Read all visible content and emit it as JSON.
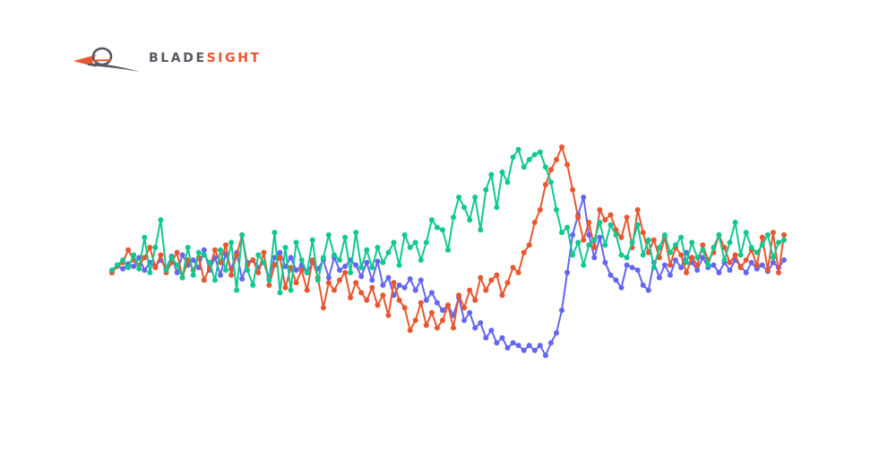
{
  "brand": {
    "part1": "BLADE",
    "part2": "SIGHT",
    "colors": {
      "dark": "#555a60",
      "accent": "#e8562f"
    }
  },
  "chart_data": {
    "type": "line",
    "title": "",
    "xlabel": "",
    "ylabel": "",
    "xlim": [
      0,
      124
    ],
    "ylim": [
      -0.9,
      1.1
    ],
    "grid": false,
    "legend": "none",
    "markers": true,
    "series": [
      {
        "color": "#6366f1",
        "values": [
          0.0,
          0.06,
          0.03,
          0.07,
          0.05,
          0.12,
          0.02,
          0.08,
          0.05,
          0.1,
          0.03,
          0.13,
          0.0,
          0.14,
          0.06,
          0.1,
          0.04,
          0.18,
          0.02,
          0.12,
          -0.02,
          0.15,
          0.03,
          0.16,
          -0.05,
          0.08,
          0.1,
          0.04,
          0.08,
          -0.04,
          0.12,
          0.16,
          0.05,
          0.12,
          0.02,
          0.06,
          0.0,
          0.08,
          0.03,
          0.1,
          -0.04,
          0.12,
          0.02,
          0.05,
          0.1,
          0.06,
          -0.03,
          0.08,
          -0.06,
          0.09,
          -0.1,
          -0.04,
          -0.18,
          -0.1,
          -0.12,
          -0.05,
          -0.14,
          -0.06,
          -0.22,
          -0.16,
          -0.24,
          -0.3,
          -0.26,
          -0.34,
          -0.2,
          -0.38,
          -0.32,
          -0.44,
          -0.4,
          -0.52,
          -0.46,
          -0.56,
          -0.52,
          -0.6,
          -0.56,
          -0.58,
          -0.62,
          -0.58,
          -0.62,
          -0.58,
          -0.66,
          -0.56,
          -0.48,
          -0.3,
          0.0,
          0.3,
          0.46,
          0.6,
          0.3,
          0.12,
          0.28,
          0.08,
          -0.02,
          -0.06,
          -0.12,
          0.06,
          0.04,
          0.02,
          -0.1,
          -0.14,
          0.08,
          -0.04,
          0.06,
          -0.02,
          0.1,
          0.04,
          0.16,
          0.08,
          0.02,
          0.12,
          0.04,
          0.06,
          0.0,
          0.08,
          0.02,
          0.1,
          0.05,
          0.0,
          0.08,
          0.03,
          0.06,
          0.01,
          0.08,
          0.04,
          0.1
        ]
      },
      {
        "color": "#e8562f",
        "values": [
          0.0,
          0.05,
          0.08,
          0.18,
          0.1,
          0.06,
          0.12,
          0.2,
          0.04,
          0.14,
          0.0,
          0.08,
          0.16,
          -0.04,
          0.1,
          0.02,
          0.12,
          -0.06,
          0.04,
          0.18,
          0.08,
          0.22,
          -0.02,
          0.14,
          0.3,
          0.06,
          0.1,
          0.0,
          0.16,
          -0.1,
          0.06,
          0.12,
          -0.12,
          0.04,
          -0.08,
          0.02,
          -0.14,
          0.1,
          -0.04,
          -0.28,
          -0.08,
          -0.14,
          -0.06,
          0.0,
          -0.2,
          -0.08,
          -0.16,
          -0.22,
          -0.12,
          -0.26,
          -0.18,
          -0.34,
          -0.08,
          -0.22,
          -0.28,
          -0.46,
          -0.38,
          -0.24,
          -0.42,
          -0.32,
          -0.44,
          -0.38,
          -0.26,
          -0.44,
          -0.18,
          -0.28,
          -0.14,
          -0.22,
          -0.04,
          -0.14,
          -0.06,
          -0.02,
          -0.18,
          -0.08,
          0.04,
          0.0,
          0.16,
          0.22,
          0.4,
          0.5,
          0.7,
          0.82,
          0.9,
          1.0,
          0.86,
          0.66,
          0.44,
          0.26,
          0.4,
          0.2,
          0.5,
          0.42,
          0.46,
          0.34,
          0.28,
          0.44,
          0.2,
          0.5,
          0.32,
          0.16,
          0.26,
          0.12,
          0.28,
          0.06,
          0.2,
          0.14,
          0.0,
          0.12,
          0.06,
          0.22,
          0.1,
          0.16,
          0.3,
          0.2,
          0.08,
          0.14,
          0.04,
          0.1,
          0.18,
          0.06,
          0.28,
          0.02,
          0.32,
          0.0,
          0.3
        ]
      },
      {
        "color": "#10c890",
        "values": [
          0.02,
          0.06,
          0.1,
          0.04,
          0.14,
          0.03,
          0.28,
          0.0,
          0.2,
          0.42,
          0.02,
          0.12,
          0.06,
          -0.04,
          0.2,
          -0.02,
          0.16,
          0.14,
          0.08,
          -0.06,
          0.18,
          0.02,
          0.24,
          -0.14,
          0.3,
          0.02,
          -0.1,
          0.14,
          0.08,
          -0.06,
          0.32,
          -0.16,
          0.2,
          -0.14,
          0.24,
          0.1,
          0.0,
          0.26,
          -0.06,
          0.12,
          0.3,
          0.14,
          0.1,
          0.28,
          0.0,
          0.32,
          0.04,
          0.18,
          0.04,
          0.2,
          0.08,
          0.16,
          0.24,
          0.06,
          0.3,
          0.2,
          0.24,
          0.1,
          0.24,
          0.42,
          0.36,
          0.34,
          0.18,
          0.44,
          0.6,
          0.52,
          0.42,
          0.6,
          0.34,
          0.66,
          0.78,
          0.52,
          0.8,
          0.72,
          0.92,
          0.98,
          0.84,
          0.9,
          0.94,
          0.96,
          0.84,
          0.72,
          0.5,
          0.32,
          0.36,
          0.14,
          0.24,
          0.06,
          0.22,
          0.26,
          0.4,
          0.22,
          0.38,
          0.3,
          0.14,
          0.12,
          0.24,
          0.38,
          0.14,
          0.26,
          0.04,
          0.2,
          0.3,
          0.16,
          0.22,
          0.28,
          0.08,
          0.24,
          0.12,
          0.18,
          0.06,
          0.2,
          0.3,
          0.1,
          0.24,
          0.4,
          0.14,
          0.32,
          0.2,
          0.16,
          0.22,
          0.3,
          0.12,
          0.24,
          0.26
        ]
      }
    ]
  }
}
